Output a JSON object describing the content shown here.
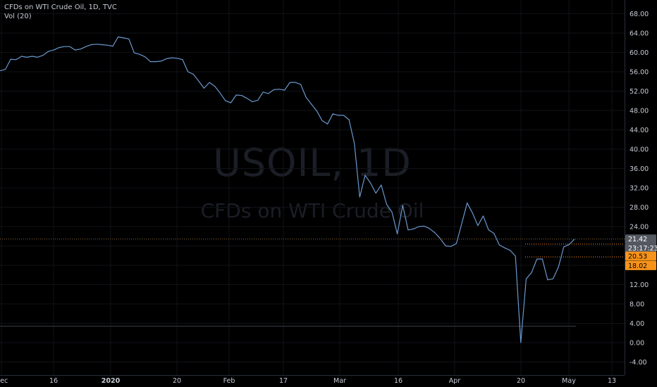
{
  "chart_data": {
    "type": "line",
    "title": "CFDs on WTI Crude Oil, 1D, TVC",
    "indicator": "Vol (20)",
    "watermark": {
      "symbol": "USOIL, 1D",
      "description": "CFDs on WTI Crude Oil"
    },
    "x_ticks": [
      "Dec",
      "16",
      "2020",
      "20",
      "Feb",
      "17",
      "Mar",
      "16",
      "Apr",
      "20",
      "May",
      "13"
    ],
    "y_ticks": [
      "68.00",
      "64.00",
      "60.00",
      "56.00",
      "52.00",
      "48.00",
      "44.00",
      "40.00",
      "36.00",
      "32.00",
      "28.00",
      "24.00",
      "20.00",
      "16.00",
      "12.00",
      "8.00",
      "4.00",
      "0.00",
      "-4.00"
    ],
    "ylim": [
      -5.5,
      70.5
    ],
    "price_tags": [
      {
        "label": "21.42",
        "value": 21.42,
        "bg": "#545860",
        "fg": "#ffffff"
      },
      {
        "label": "23:17:23",
        "value": 19.55,
        "bg": "#545860",
        "fg": "#ffffff"
      },
      {
        "label": "20.53",
        "value": 17.9,
        "bg": "#f7931a",
        "fg": "#000000"
      },
      {
        "label": "18.02",
        "value": 15.95,
        "bg": "#f7931a",
        "fg": "#000000"
      }
    ],
    "series": [
      {
        "color": "#6a98cf",
        "values": [
          56.2,
          56.5,
          58.6,
          58.5,
          59.2,
          59.0,
          59.2,
          59.0,
          59.4,
          60.2,
          60.5,
          61.0,
          61.2,
          61.2,
          60.5,
          60.7,
          61.2,
          61.6,
          61.7,
          61.6,
          61.5,
          61.3,
          63.2,
          63.0,
          62.8,
          59.9,
          59.6,
          59.1,
          58.1,
          58.1,
          58.2,
          58.7,
          58.9,
          58.8,
          58.5,
          56.0,
          55.5,
          54.1,
          52.6,
          53.8,
          53.0,
          51.6,
          50.0,
          49.6,
          51.2,
          51.1,
          50.5,
          49.8,
          50.1,
          51.8,
          51.5,
          52.3,
          52.4,
          52.2,
          53.8,
          53.8,
          53.4,
          50.7,
          49.3,
          47.9,
          45.9,
          45.2,
          47.3,
          47.0,
          47.0,
          46.1,
          41.2,
          30.1,
          34.6,
          33.0,
          30.9,
          32.6,
          28.6,
          27.0,
          22.5,
          28.4,
          23.3,
          23.5,
          24.0,
          24.1,
          23.6,
          22.7,
          21.5,
          20.0,
          19.9,
          20.5,
          24.6,
          28.9,
          26.8,
          24.2,
          26.2,
          23.3,
          22.6,
          20.2,
          19.6,
          19.1,
          17.9,
          0.0,
          13.2,
          14.5,
          17.3,
          17.3,
          13.0,
          13.2,
          15.6,
          19.8,
          20.3,
          21.4
        ]
      }
    ]
  }
}
